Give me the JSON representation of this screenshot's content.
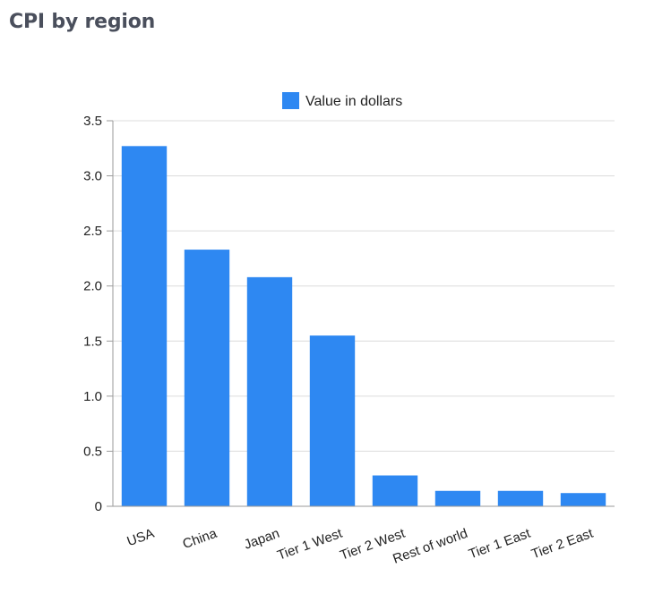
{
  "page": {
    "title": "CPI by region"
  },
  "colors": {
    "bar": "#2e88f2",
    "grid": "#dcdcdc",
    "axis": "#9a9a9a",
    "text": "#222222",
    "title": "#4a4f5c"
  },
  "chart_data": {
    "type": "bar",
    "title": "",
    "xlabel": "",
    "ylabel": "",
    "categories": [
      "USA",
      "China",
      "Japan",
      "Tier 1 West",
      "Tier 2 West",
      "Rest of world",
      "Tier 1 East",
      "Tier 2 East"
    ],
    "series": [
      {
        "name": "Value in dollars",
        "values": [
          3.27,
          2.33,
          2.08,
          1.55,
          0.28,
          0.14,
          0.14,
          0.12
        ]
      }
    ],
    "ylim": [
      0,
      3.5
    ],
    "yticks": [
      "0",
      "0.5",
      "1.0",
      "1.5",
      "2.0",
      "2.5",
      "3.0",
      "3.5"
    ],
    "grid": true,
    "legend": "top-center"
  }
}
